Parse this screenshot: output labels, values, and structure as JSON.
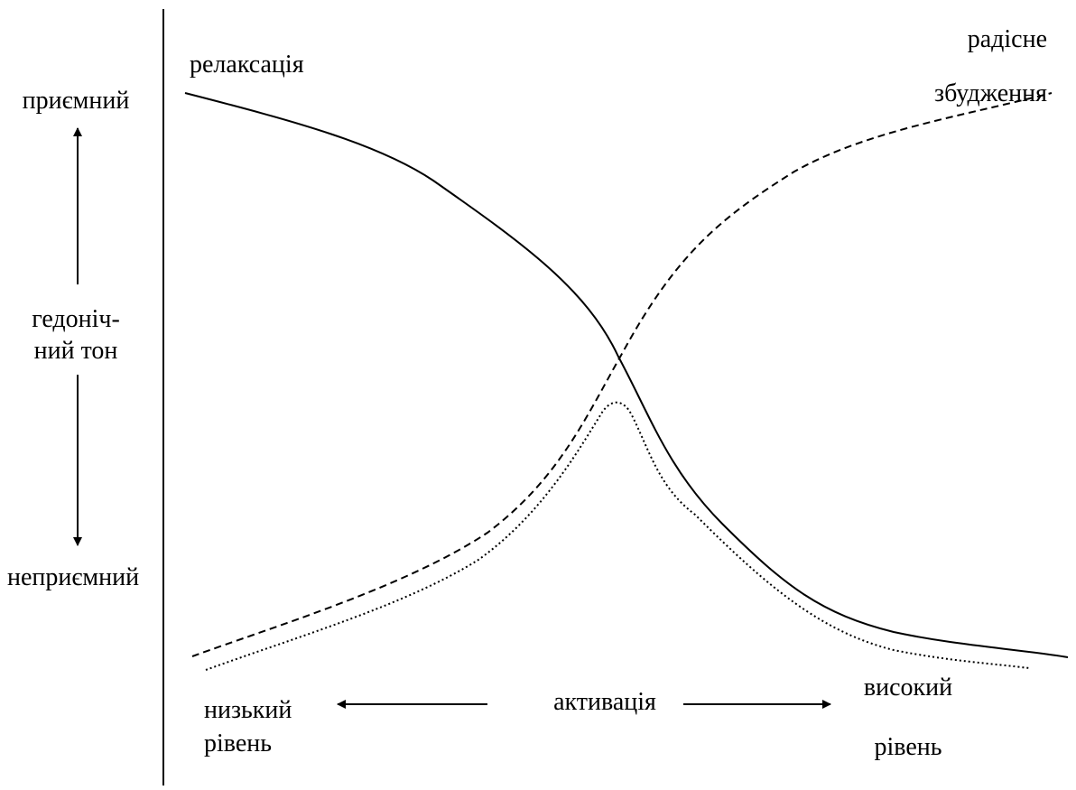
{
  "labels": {
    "relaxation": "релаксація",
    "excitement": [
      "радісне",
      "збудження"
    ],
    "pleasant": "приємний",
    "hedonic_tone": [
      "гедоніч-",
      "ний тон"
    ],
    "unpleasant": "неприємний",
    "low_level": [
      "низький",
      "рівень"
    ],
    "activation": "активація",
    "high_level": [
      "високий",
      "рівень"
    ]
  }
}
